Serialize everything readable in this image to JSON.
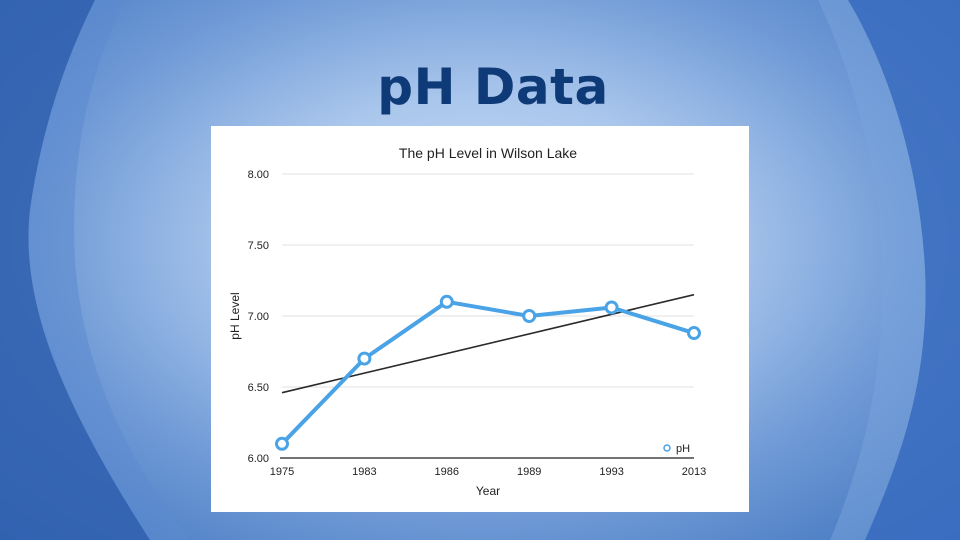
{
  "slide": {
    "title": "pH Data"
  },
  "colors": {
    "series": "#4aa3e6",
    "trend": "#2a2a2a",
    "title": "#0f3a78",
    "grid": "#e2e2e2"
  },
  "chart_data": {
    "type": "line",
    "title": "The pH Level in Wilson Lake",
    "xlabel": "Year",
    "ylabel": "pH Level",
    "categories": [
      "1975",
      "1983",
      "1986",
      "1989",
      "1993",
      "2013"
    ],
    "series": [
      {
        "name": "pH",
        "values": [
          6.1,
          6.7,
          7.1,
          7.0,
          7.06,
          6.88
        ]
      }
    ],
    "trendline": {
      "start": 6.46,
      "end": 7.15
    },
    "ylim": [
      6.0,
      8.0
    ],
    "yticks": [
      "6.00",
      "6.50",
      "7.00",
      "7.50",
      "8.00"
    ],
    "grid": true,
    "legend_position": "bottom-right"
  }
}
